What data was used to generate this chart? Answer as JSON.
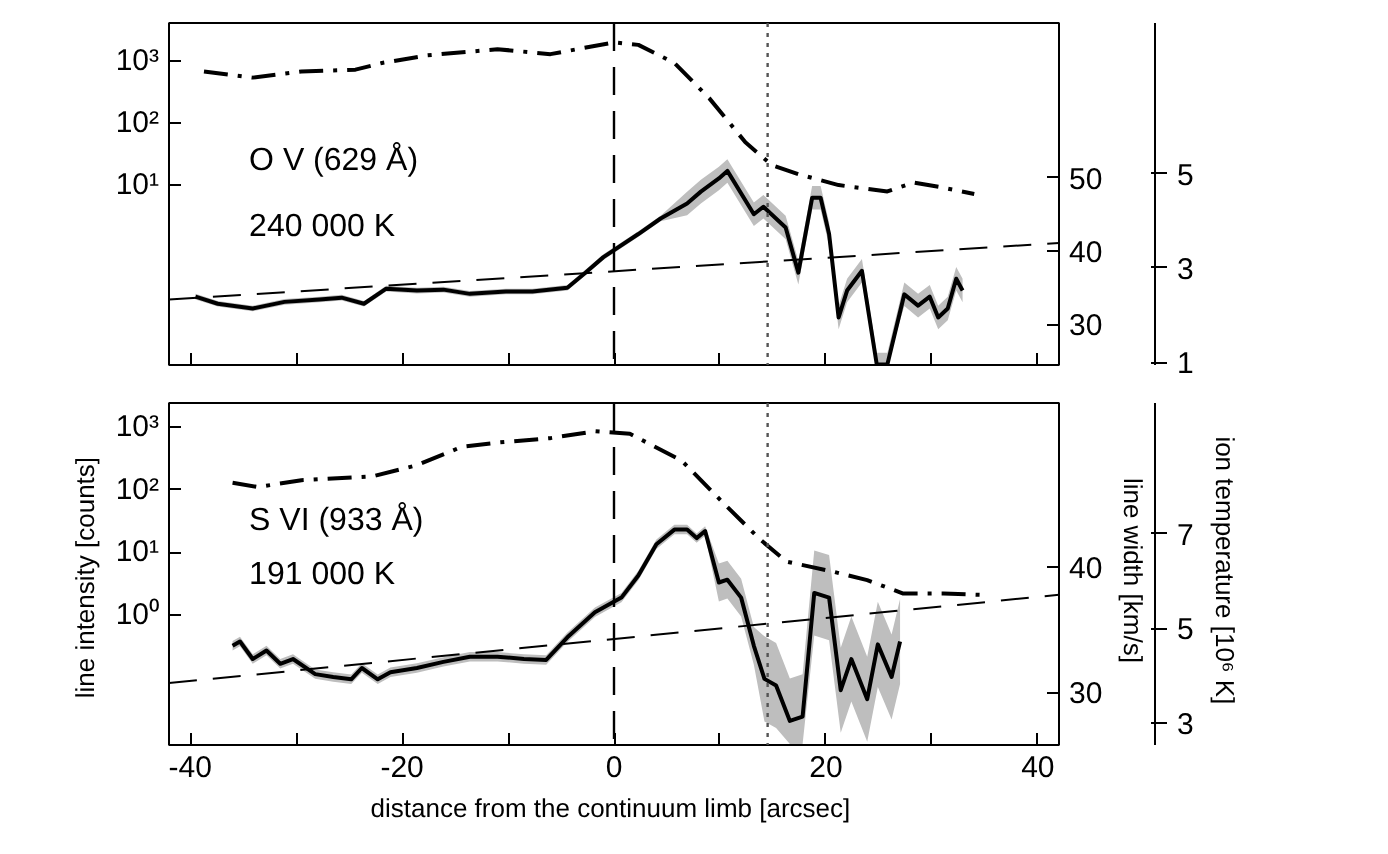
{
  "chart_data": [
    {
      "type": "line",
      "xlim": [
        -42,
        42
      ],
      "xticks": [
        -40,
        {
          "value": -30,
          "label": null
        },
        -20,
        {
          "value": -10,
          "label": null
        },
        0,
        {
          "value": 10,
          "label": null
        },
        20,
        {
          "value": 30,
          "label": null
        },
        40
      ],
      "tick_labels": "y",
      "log": "y",
      "ylim": [
        0.0126,
        4100
      ],
      "yticks": [
        {
          "value": 10,
          "label": "10¹"
        },
        {
          "value": 100,
          "label": "10²"
        },
        {
          "value": 1000,
          "label": "10³"
        }
      ],
      "y2lim": [
        24.4,
        71.2
      ],
      "y2ticks": [
        50,
        40,
        30
      ],
      "y3lim": [
        0.94,
        8.2
      ],
      "y3ticks": [
        1,
        3,
        5
      ],
      "annotations": [
        "O V  (629 Å)",
        "240 000 K"
      ],
      "series": [
        {
          "line_style": "dashdot",
          "color": "#000000",
          "axis": "y",
          "x": [
            -38.7,
            -34.1,
            -29.5,
            -24.4,
            -21.9,
            -17.7,
            -11.0,
            -6.0,
            0,
            2.3,
            5.7,
            9.0,
            12.4,
            14.9,
            17.4,
            21.2,
            25.8,
            28.3,
            30.8,
            34.0
          ],
          "values": [
            680,
            540,
            680,
            725,
            930,
            1230,
            1550,
            1290,
            2000,
            1820,
            930,
            250,
            49,
            21,
            15,
            10,
            7.9,
            11,
            9.3,
            7.2
          ]
        },
        {
          "line_style": "dashed",
          "color": "#000000",
          "axis": "y3",
          "x": [
            -42,
            42
          ],
          "values": [
            2.33,
            3.53
          ]
        },
        {
          "line_style": "solid",
          "color": "#000000",
          "axis": "y3",
          "x": [
            -39.5,
            -37.4,
            -34.1,
            -31.1,
            -27.8,
            -25.7,
            -23.6,
            -21.5,
            -18.6,
            -16.1,
            -13.6,
            -10.2,
            -7.7,
            -4.4,
            -2.7,
            -1.0,
            2.3,
            4.4,
            6.9,
            8.2,
            9.9,
            10.7,
            13.2,
            14.1,
            16.2,
            17.4,
            18.7,
            19.5,
            20.3,
            21.2,
            22.0,
            23.4,
            24.8,
            25.8,
            27.4,
            28.7,
            29.8,
            30.6,
            31.5,
            32.3,
            32.9
          ],
          "values": [
            2.39,
            2.24,
            2.14,
            2.28,
            2.33,
            2.37,
            2.24,
            2.56,
            2.52,
            2.54,
            2.45,
            2.5,
            2.5,
            2.58,
            2.9,
            3.23,
            3.72,
            4.05,
            4.37,
            4.62,
            4.9,
            5.06,
            4.14,
            4.3,
            3.86,
            2.9,
            4.49,
            4.49,
            3.72,
            1.95,
            2.52,
            2.94,
            0.95,
            0.95,
            2.44,
            2.2,
            2.39,
            1.95,
            2.14,
            2.77,
            2.52
          ],
          "lower": [
            2.33,
            2.18,
            2.08,
            2.22,
            2.27,
            2.31,
            2.18,
            2.5,
            2.46,
            2.48,
            2.39,
            2.44,
            2.44,
            2.52,
            2.84,
            3.17,
            3.66,
            3.99,
            4.12,
            4.37,
            4.65,
            4.81,
            3.89,
            4.05,
            3.61,
            2.65,
            4.24,
            4.24,
            3.47,
            1.7,
            2.27,
            2.69,
            0.95,
            0.95,
            2.19,
            1.95,
            2.14,
            1.7,
            1.89,
            2.52,
            2.27
          ],
          "upper": [
            2.45,
            2.3,
            2.2,
            2.34,
            2.39,
            2.43,
            2.3,
            2.62,
            2.58,
            2.6,
            2.51,
            2.56,
            2.56,
            2.64,
            2.96,
            3.29,
            3.78,
            4.11,
            4.62,
            4.87,
            5.15,
            5.31,
            4.39,
            4.55,
            4.11,
            3.15,
            4.74,
            4.74,
            3.97,
            2.2,
            2.77,
            3.19,
            1.2,
            1.2,
            2.69,
            2.45,
            2.64,
            2.2,
            2.39,
            3.02,
            2.77
          ]
        }
      ],
      "ref_lines": [
        {
          "axis": "x",
          "value": 0,
          "line_style": "dashed",
          "color": "#000000"
        },
        {
          "axis": "x",
          "value": 14.5,
          "line_style": "dotted",
          "color": "#555555"
        }
      ]
    },
    {
      "type": "line",
      "xlim": [
        -42,
        42
      ],
      "xticks": [
        -40,
        {
          "value": -30,
          "label": null
        },
        -20,
        {
          "value": -10,
          "label": null
        },
        0,
        {
          "value": 10,
          "label": null
        },
        20,
        {
          "value": 30,
          "label": null
        },
        40
      ],
      "log": "y",
      "xlabel": "distance from the continuum limb  [arcsec]",
      "ylabel": "line intensity  [counts]",
      "y2label": "line width  [km/s]",
      "y3label": "ion temperature  [10⁶ K]",
      "ylim": [
        0.0085,
        2400
      ],
      "yticks": [
        {
          "value": 1,
          "label": "10⁰"
        },
        {
          "value": 10,
          "label": "10¹"
        },
        {
          "value": 100,
          "label": "10²"
        },
        {
          "value": 1000,
          "label": "10³"
        }
      ],
      "y2lim": [
        25.8,
        53.1
      ],
      "y2ticks": [
        40,
        30
      ],
      "y3lim": [
        2.53,
        9.77
      ],
      "y3ticks": [
        3,
        5,
        7
      ],
      "annotations": [
        "S VI  (933 Å)",
        "191 000 K"
      ],
      "series": [
        {
          "line_style": "dashdot",
          "color": "#000000",
          "axis": "y",
          "x": [
            -36.0,
            -33.6,
            -29.5,
            -22.8,
            -18.6,
            -14.4,
            -11.0,
            -6.0,
            -1.8,
            1.5,
            6.4,
            10.5,
            13.8,
            16.3,
            20.5,
            23.9,
            27.3,
            31.1,
            34.8
          ],
          "values": [
            129,
            110,
            141,
            162,
            245,
            479,
            562,
            661,
            851,
            776,
            288,
            57,
            16,
            7.1,
            5.0,
            3.6,
            2.2,
            2.2,
            2.1
          ]
        },
        {
          "line_style": "dashed",
          "color": "#000000",
          "axis": "y3",
          "x": [
            -42,
            42
          ],
          "values": [
            3.84,
            5.71
          ]
        },
        {
          "line_style": "solid",
          "color": "#000000",
          "axis": "y3",
          "x": [
            -36.0,
            -35.3,
            -34.1,
            -32.8,
            -31.5,
            -30.3,
            -28.2,
            -26.5,
            -24.8,
            -23.8,
            -22.3,
            -21.1,
            -18.6,
            -16.1,
            -13.6,
            -11.0,
            -8.5,
            -6.4,
            -4.4,
            -1.8,
            0.7,
            2.3,
            4.0,
            5.7,
            6.9,
            7.8,
            8.6,
            9.9,
            10.7,
            12.0,
            13.2,
            14.2,
            15.3,
            16.6,
            17.8,
            18.9,
            20.3,
            21.4,
            22.4,
            23.9,
            24.9,
            26.2,
            27.0
          ],
          "values": [
            4.63,
            4.72,
            4.35,
            4.53,
            4.25,
            4.35,
            4.03,
            3.97,
            3.92,
            4.16,
            3.92,
            4.07,
            4.16,
            4.29,
            4.4,
            4.4,
            4.35,
            4.33,
            4.81,
            5.34,
            5.65,
            6.12,
            6.78,
            7.09,
            7.09,
            6.91,
            7.06,
            5.97,
            6.03,
            5.65,
            4.63,
            3.93,
            3.79,
            3.04,
            3.13,
            5.75,
            5.65,
            3.69,
            4.35,
            3.5,
            4.66,
            3.97,
            4.72
          ],
          "lower": [
            4.53,
            4.62,
            4.25,
            4.43,
            4.15,
            4.25,
            3.93,
            3.87,
            3.82,
            4.06,
            3.82,
            3.97,
            4.06,
            4.19,
            4.3,
            4.3,
            4.25,
            4.23,
            4.71,
            5.24,
            5.55,
            6.02,
            6.68,
            6.99,
            6.99,
            6.81,
            6.96,
            5.57,
            5.63,
            5.25,
            4.23,
            3.03,
            2.89,
            2.55,
            2.55,
            4.85,
            4.75,
            2.79,
            3.45,
            2.6,
            3.76,
            3.07,
            3.82
          ],
          "upper": [
            4.73,
            4.82,
            4.45,
            4.63,
            4.35,
            4.45,
            4.13,
            4.07,
            4.02,
            4.26,
            4.02,
            4.17,
            4.26,
            4.39,
            4.5,
            4.5,
            4.45,
            4.43,
            4.91,
            5.44,
            5.75,
            6.22,
            6.88,
            7.19,
            7.19,
            7.01,
            7.16,
            6.37,
            6.43,
            6.05,
            5.03,
            4.83,
            4.69,
            3.94,
            4.03,
            6.65,
            6.55,
            4.59,
            5.25,
            4.4,
            5.56,
            4.87,
            5.62
          ]
        }
      ],
      "ref_lines": [
        {
          "axis": "x",
          "value": 0,
          "line_style": "dashed",
          "color": "#000000"
        },
        {
          "axis": "x",
          "value": 14.5,
          "line_style": "dotted",
          "color": "#555555"
        }
      ]
    }
  ]
}
